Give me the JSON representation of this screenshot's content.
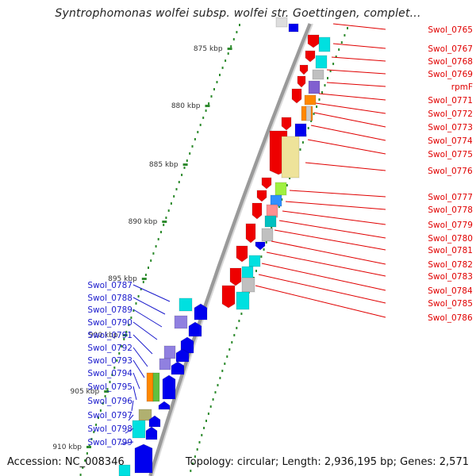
{
  "title": "Syntrophomonas wolfei subsp. wolfei str. Goettingen, complet...",
  "footer": {
    "accession": "Accession: NC_008346",
    "topology": "Topology: circular; Length: 2,936,195 bp; Genes: 2,571"
  },
  "kbp_labels": [
    "875 kbp",
    "880 kbp",
    "885 kbp",
    "890 kbp",
    "895 kbp",
    "900 kbp",
    "905 kbp",
    "910 kbp"
  ],
  "right_genes": [
    "Swol_0765",
    "Swol_0767",
    "Swol_0768",
    "Swol_0769",
    "rpmF",
    "Swol_0771",
    "Swol_0772",
    "Swol_0773",
    "Swol_0774",
    "Swol_0775",
    "Swol_0776",
    "Swol_0777",
    "Swol_0778",
    "Swol_0779",
    "Swol_0780",
    "Swol_0781",
    "Swol_0782",
    "Swol_0783",
    "Swol_0784",
    "Swol_0785",
    "Swol_0786"
  ],
  "left_genes": [
    "Swol_0787",
    "Swol_0788",
    "Swol_0789",
    "Swol_0790",
    "Swol_0791",
    "Swol_0792",
    "Swol_0793",
    "Swol_0794",
    "Swol_0795",
    "Swol_0796",
    "Swol_0797",
    "Swol_0798",
    "Swol_0799"
  ],
  "colors": {
    "right_label": "#e00000",
    "left_label": "#1a1acc",
    "forward_arrow": "#ee0000",
    "reverse_arrow": "#0000ee",
    "tick": "#2e8b2e",
    "backbone": "#9a9a9a"
  }
}
